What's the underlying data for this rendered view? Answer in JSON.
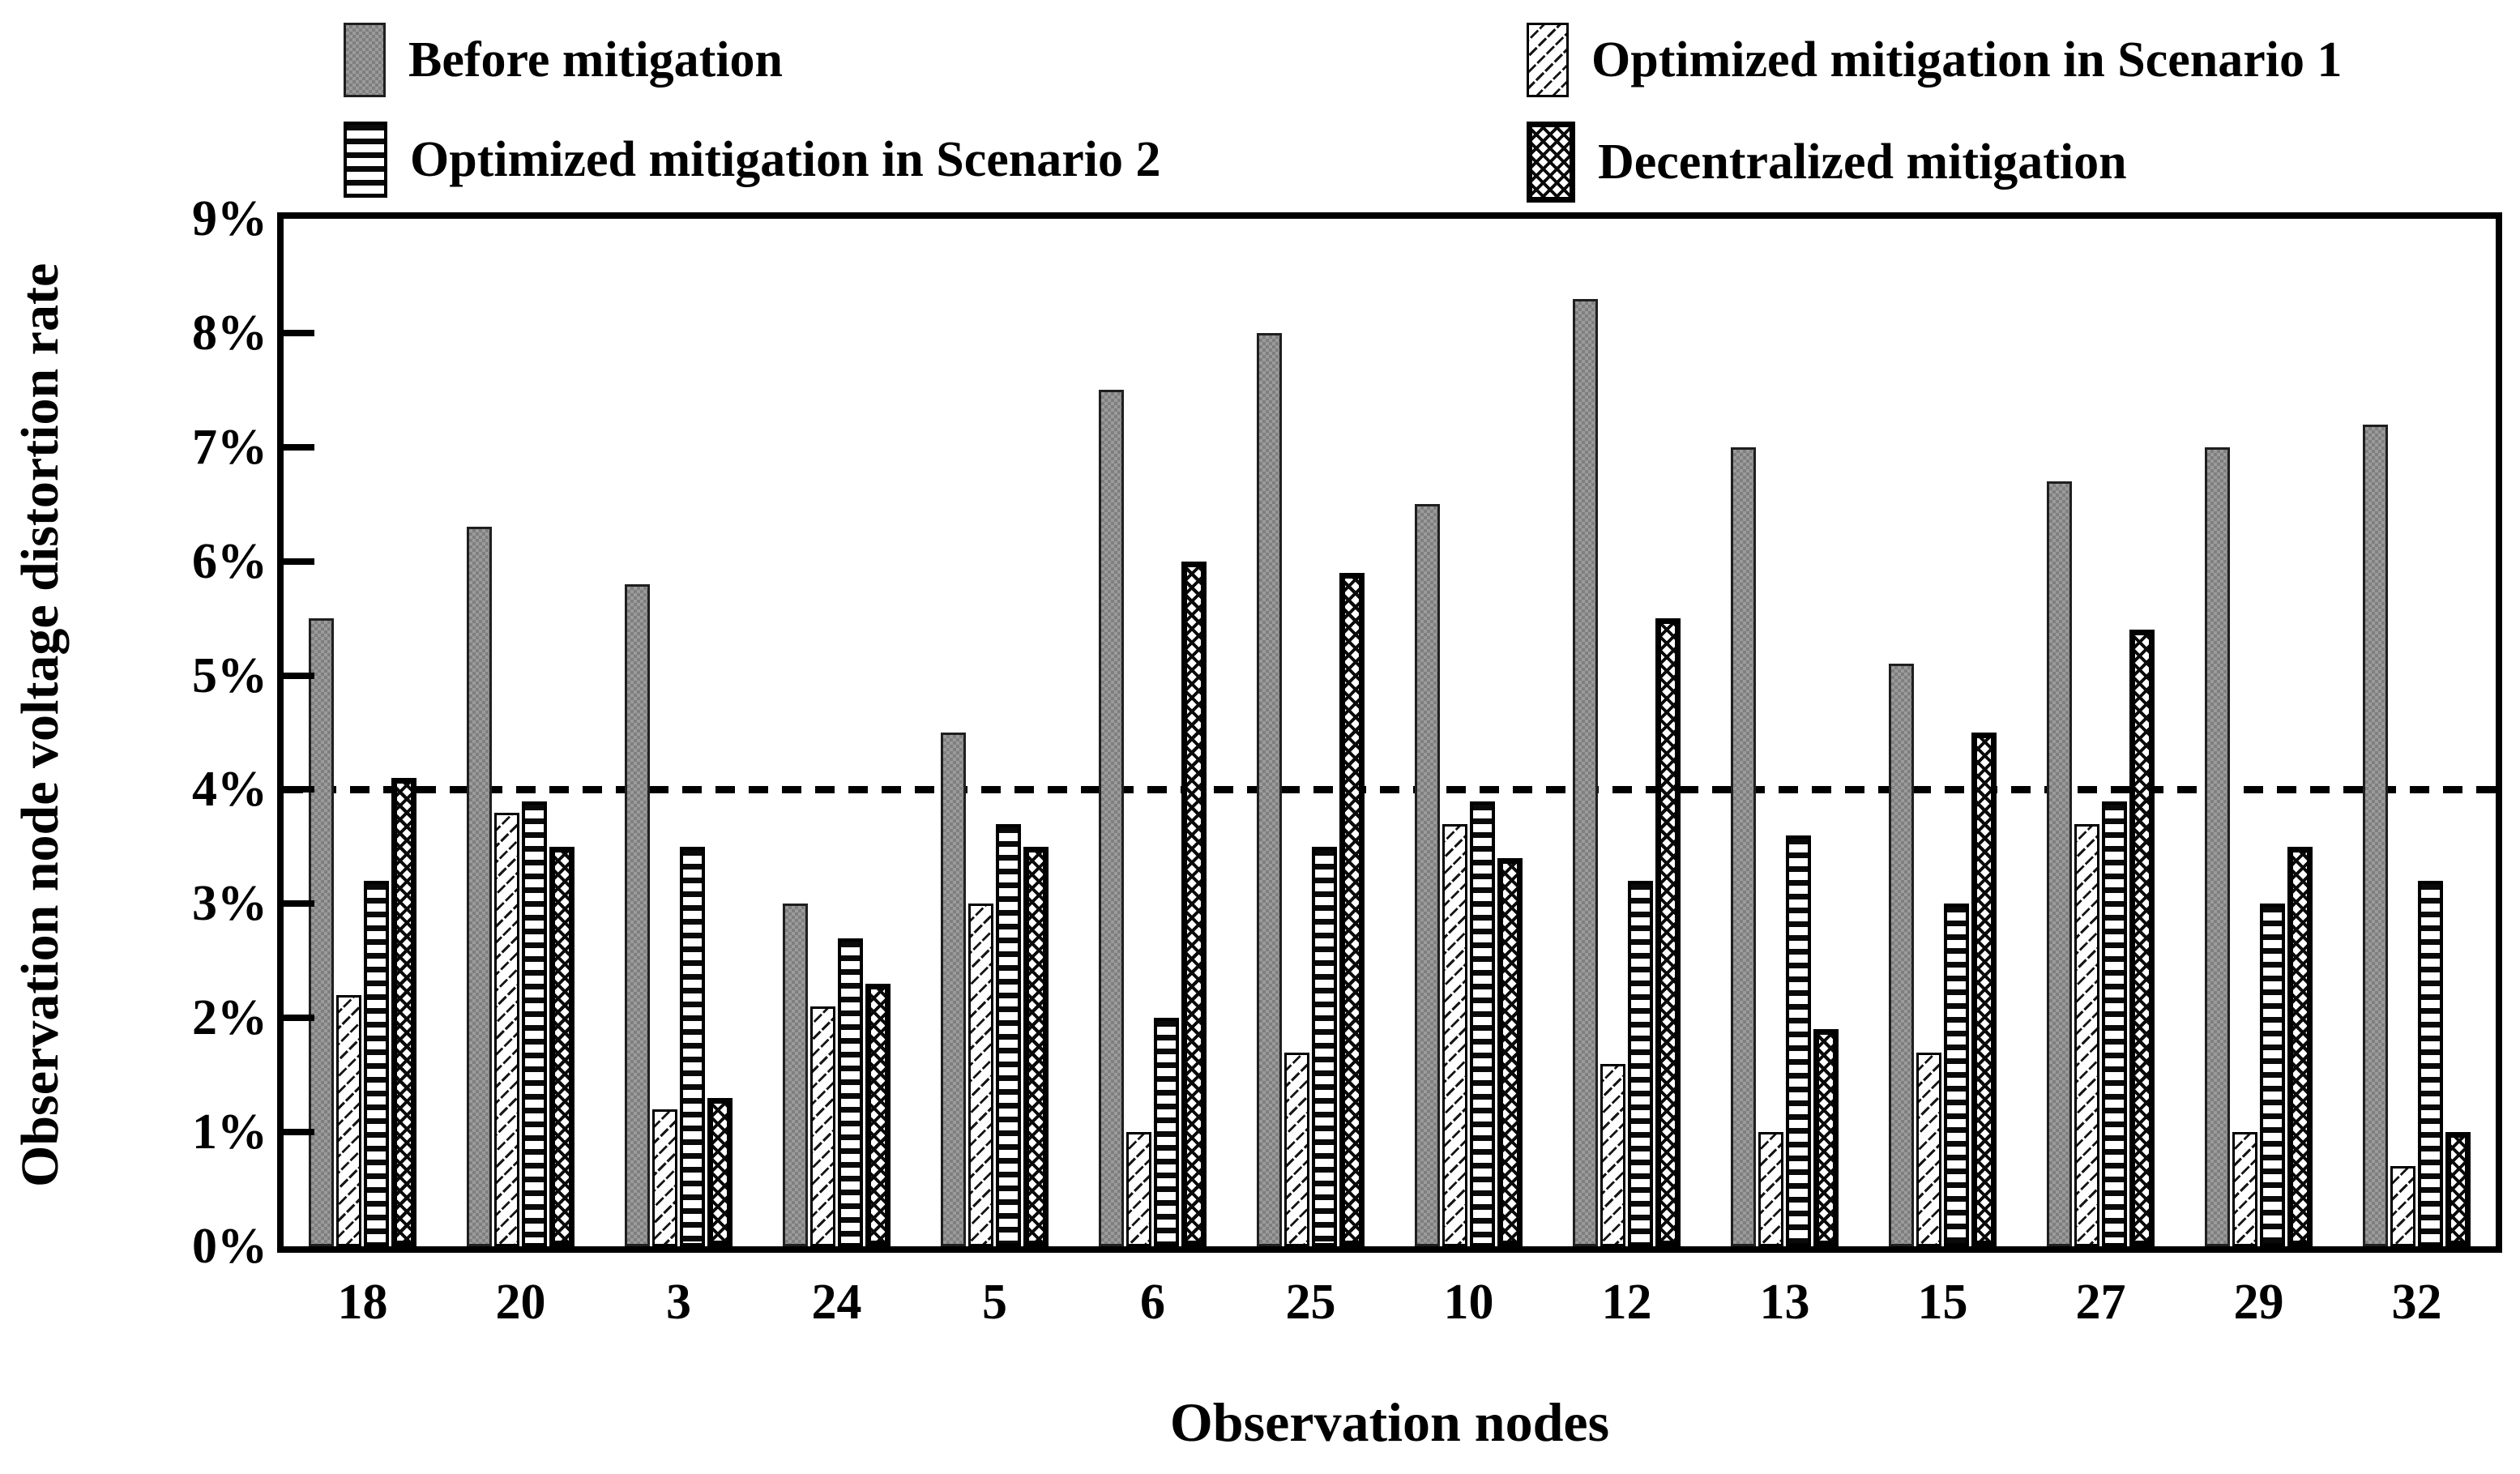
{
  "legend": {
    "items": [
      {
        "label": "Before mitigation",
        "series_key": "before"
      },
      {
        "label": "Optimized mitigation in Scenario 1",
        "series_key": "s1"
      },
      {
        "label": "Optimized mitigation in Scenario 2",
        "series_key": "s2"
      },
      {
        "label": "Decentralized mitigation",
        "series_key": "dec"
      }
    ]
  },
  "axes": {
    "y_title": "Observation node voltage distortion rate",
    "x_title": "Observation nodes",
    "y_ticks": [
      "0%",
      "1%",
      "2%",
      "3%",
      "4%",
      "5%",
      "6%",
      "7%",
      "8%",
      "9%"
    ]
  },
  "colors": {
    "before_gray": "#9b9b9b",
    "ink": "#000000"
  },
  "chart_data": {
    "type": "bar",
    "categories": [
      "18",
      "20",
      "3",
      "24",
      "5",
      "6",
      "25",
      "10",
      "12",
      "13",
      "15",
      "27",
      "29",
      "32"
    ],
    "series": [
      {
        "name": "Before mitigation",
        "key": "before",
        "values": [
          5.5,
          6.3,
          5.8,
          3.0,
          4.5,
          7.5,
          8.0,
          6.5,
          8.3,
          7.0,
          5.1,
          6.7,
          7.0,
          7.2
        ]
      },
      {
        "name": "Optimized mitigation in Scenario 1",
        "key": "s1",
        "values": [
          2.2,
          3.8,
          1.2,
          2.1,
          3.0,
          1.0,
          1.7,
          3.7,
          1.6,
          1.0,
          1.7,
          3.7,
          1.0,
          0.7
        ]
      },
      {
        "name": "Optimized mitigation in Scenario 2",
        "key": "s2",
        "values": [
          3.2,
          3.9,
          3.5,
          2.7,
          3.7,
          2.0,
          3.5,
          3.9,
          3.2,
          3.6,
          3.0,
          3.9,
          3.0,
          3.2
        ]
      },
      {
        "name": "Decentralized mitigation",
        "key": "dec",
        "values": [
          4.1,
          3.5,
          1.3,
          2.3,
          3.5,
          6.0,
          5.9,
          3.4,
          5.5,
          1.9,
          4.5,
          5.4,
          3.5,
          1.0
        ]
      }
    ],
    "title": "",
    "xlabel": "Observation nodes",
    "ylabel": "Observation node voltage distortion rate",
    "ylim": [
      0,
      9
    ],
    "reference_line": {
      "value": 4,
      "style": "dashed"
    },
    "legend_position": "top",
    "grid": false
  }
}
